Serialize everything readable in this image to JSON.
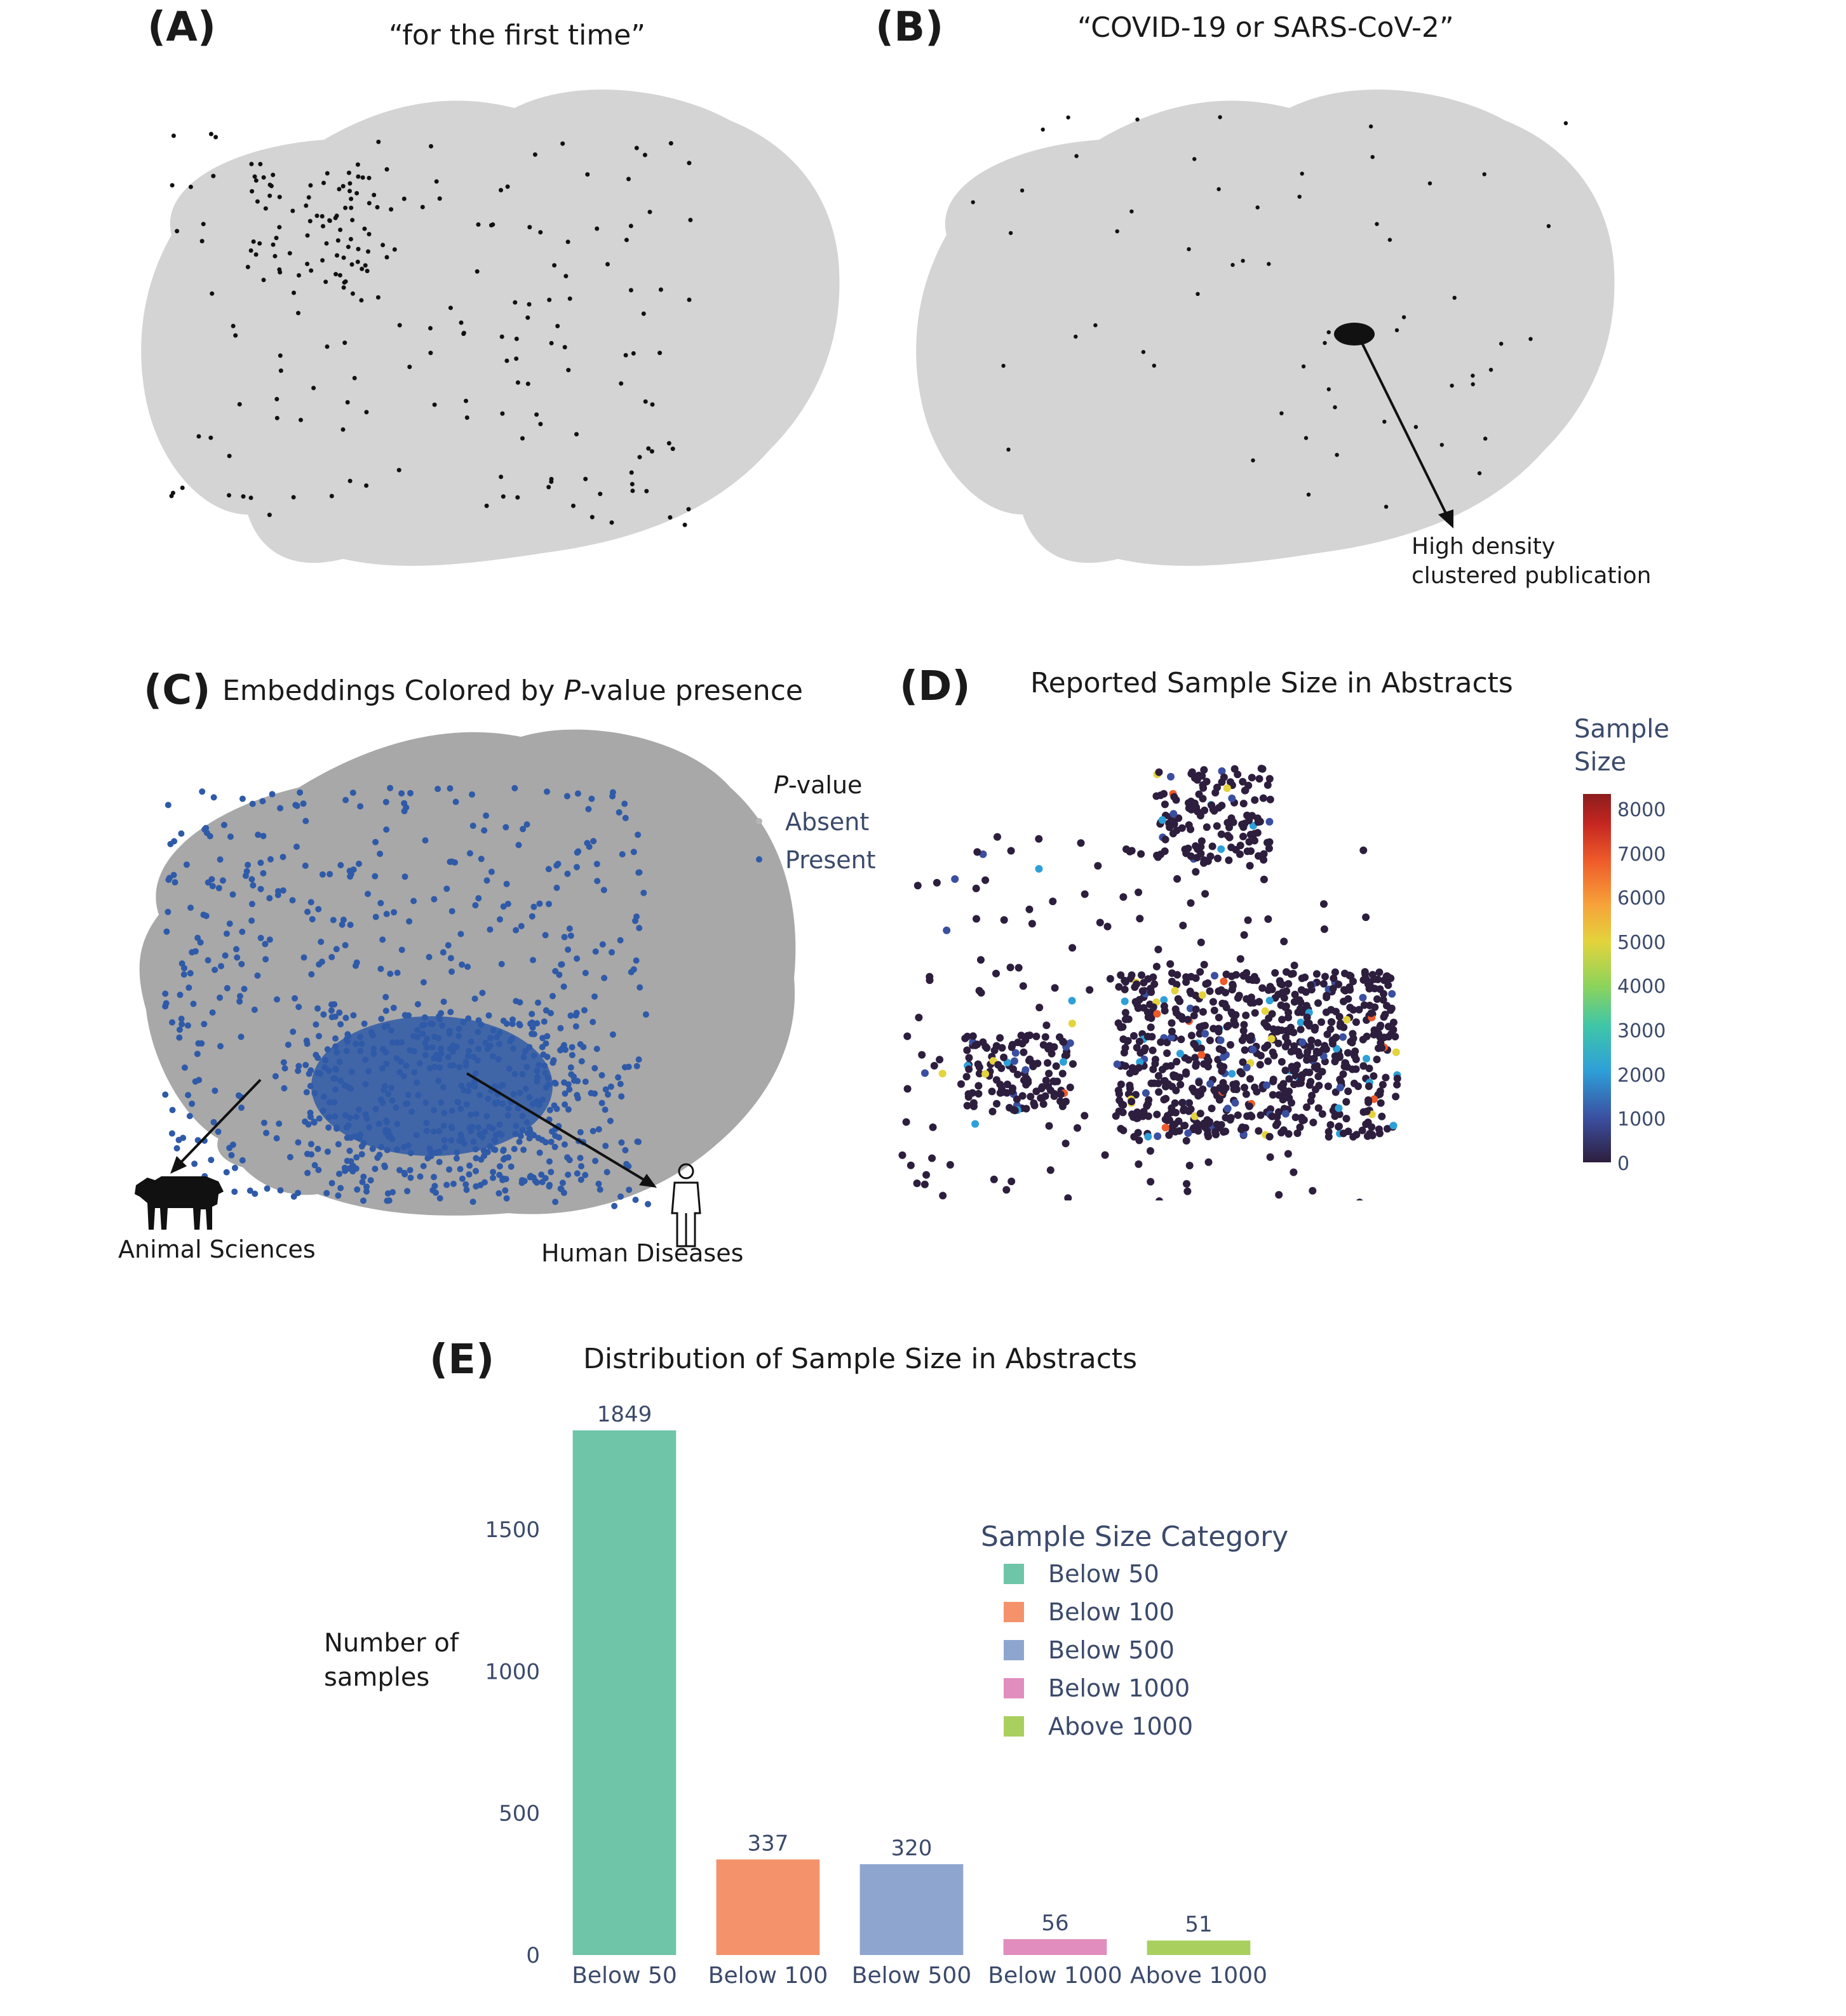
{
  "panel_a": {
    "label": "(A)",
    "title": "“for the first time”"
  },
  "panel_b": {
    "label": "(B)",
    "title": "“COVID-19 or SARS-CoV-2”",
    "annotation_line1": "High density",
    "annotation_line2": "clustered publication"
  },
  "panel_c": {
    "label": "(C)",
    "title_pre": "Embeddings Colored by ",
    "title_italic": "P",
    "title_post": "-value presence",
    "legend_title_italic": "P",
    "legend_title_post": "-value",
    "legend_items": [
      {
        "label": "Absent",
        "color": "#b5b5b5"
      },
      {
        "label": "Present",
        "color": "#2f5aa8"
      }
    ],
    "annotation_left": "Animal Sciences",
    "annotation_right": "Human Diseases",
    "icons": {
      "left": "cow-icon",
      "right": "person-icon"
    }
  },
  "panel_d": {
    "label": "(D)",
    "title": "Reported Sample Size in Abstracts",
    "colorbar_title_line1": "Sample",
    "colorbar_title_line2": "Size",
    "colorbar_ticks": [
      "8000",
      "7000",
      "6000",
      "5000",
      "4000",
      "3000",
      "2000",
      "1000",
      "0"
    ],
    "colorscale": [
      "#2d1e3e",
      "#3b4fa0",
      "#2ea0d8",
      "#3ec6a8",
      "#8ed35b",
      "#e4d33c",
      "#f7a23a",
      "#ee5a2a",
      "#c42621",
      "#8c1d1d"
    ]
  },
  "chart_data": [
    {
      "type": "bar",
      "panel_label": "(E)",
      "title": "Distribution of Sample Size in Abstracts",
      "categories": [
        "Below 50",
        "Below 100",
        "Below 500",
        "Below 1000",
        "Above 1000"
      ],
      "values": [
        1849,
        337,
        320,
        56,
        51
      ],
      "colors": [
        "#6fc5a8",
        "#f4926c",
        "#8ea6cf",
        "#e18dbe",
        "#a9cf5e"
      ],
      "ylabel_line1": "Number of",
      "ylabel_line2": "samples",
      "ylim": [
        0,
        1849
      ],
      "yticks": [
        0,
        500,
        1000,
        1500
      ],
      "legend_title": "Sample Size Category",
      "legend_placement": "right",
      "grid": false
    }
  ]
}
